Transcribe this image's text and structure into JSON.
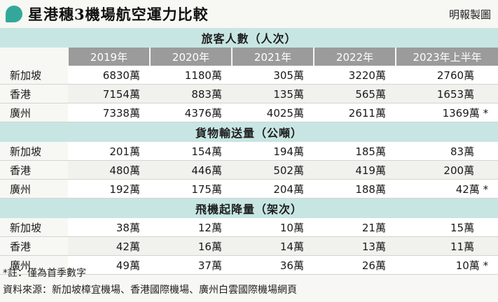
{
  "title": "星港穗3機場航空運力比較",
  "credit": "明報製圖",
  "chart_data": {
    "type": "table",
    "columns": [
      "2019年",
      "2020年",
      "2021年",
      "2022年",
      "2023年上半年"
    ],
    "unit": "萬",
    "sections": [
      {
        "title": "旅客人數（人次）",
        "rows": [
          {
            "label": "新加坡",
            "values": [
              "6830",
              "1180",
              "305",
              "3220",
              "2760"
            ],
            "star": false
          },
          {
            "label": "香港",
            "values": [
              "7154",
              "883",
              "135",
              "565",
              "1653"
            ],
            "star": false
          },
          {
            "label": "廣州",
            "values": [
              "7338",
              "4376",
              "4025",
              "2611",
              "1369"
            ],
            "star": true
          }
        ]
      },
      {
        "title": "貨物輸送量（公噸）",
        "rows": [
          {
            "label": "新加坡",
            "values": [
              "201",
              "154",
              "194",
              "185",
              "83"
            ],
            "star": false
          },
          {
            "label": "香港",
            "values": [
              "480",
              "446",
              "502",
              "419",
              "200"
            ],
            "star": false
          },
          {
            "label": "廣州",
            "values": [
              "192",
              "175",
              "204",
              "188",
              "42"
            ],
            "star": true
          }
        ]
      },
      {
        "title": "飛機起降量（架次）",
        "rows": [
          {
            "label": "新加坡",
            "values": [
              "38",
              "12",
              "10",
              "21",
              "15"
            ],
            "star": false
          },
          {
            "label": "香港",
            "values": [
              "42",
              "16",
              "14",
              "13",
              "11"
            ],
            "star": false
          },
          {
            "label": "廣州",
            "values": [
              "49",
              "37",
              "36",
              "26",
              "10"
            ],
            "star": true
          }
        ]
      }
    ]
  },
  "footnote": "*註：僅為首季數字",
  "source": "資料來源：新加坡樟宜機場、香港國際機場、廣州白雲國際機場網頁"
}
